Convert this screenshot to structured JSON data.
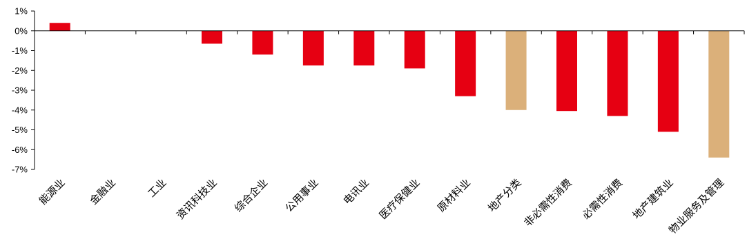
{
  "chart_data": {
    "type": "bar",
    "title": "",
    "xlabel": "",
    "ylabel": "",
    "ylim": [
      -7,
      1
    ],
    "yticks": [
      1,
      0,
      -1,
      -2,
      -3,
      -4,
      -5,
      -6,
      -7
    ],
    "ytick_labels": [
      "1%",
      "0%",
      "-1%",
      "-2%",
      "-3%",
      "-4%",
      "-5%",
      "-6%",
      "-7%"
    ],
    "grid": false,
    "legend": "none",
    "categories": [
      "能源业",
      "金融业",
      "工业",
      "资讯科技业",
      "综合企业",
      "公用事业",
      "电讯业",
      "医疗保健业",
      "原材料业",
      "地产分类",
      "非必需性消费",
      "必需性消费",
      "地产建筑业",
      "物业服务及管理"
    ],
    "values": [
      0.4,
      0.0,
      0.0,
      -0.65,
      -1.2,
      -1.75,
      -1.75,
      -1.9,
      -3.3,
      -4.0,
      -4.05,
      -4.3,
      -5.1,
      -6.4
    ],
    "highlight": [
      false,
      false,
      false,
      false,
      false,
      false,
      false,
      false,
      false,
      true,
      false,
      false,
      false,
      true
    ],
    "colors": {
      "default": "#e60012",
      "highlight": "#dbb07a",
      "axis": "#000000"
    }
  }
}
